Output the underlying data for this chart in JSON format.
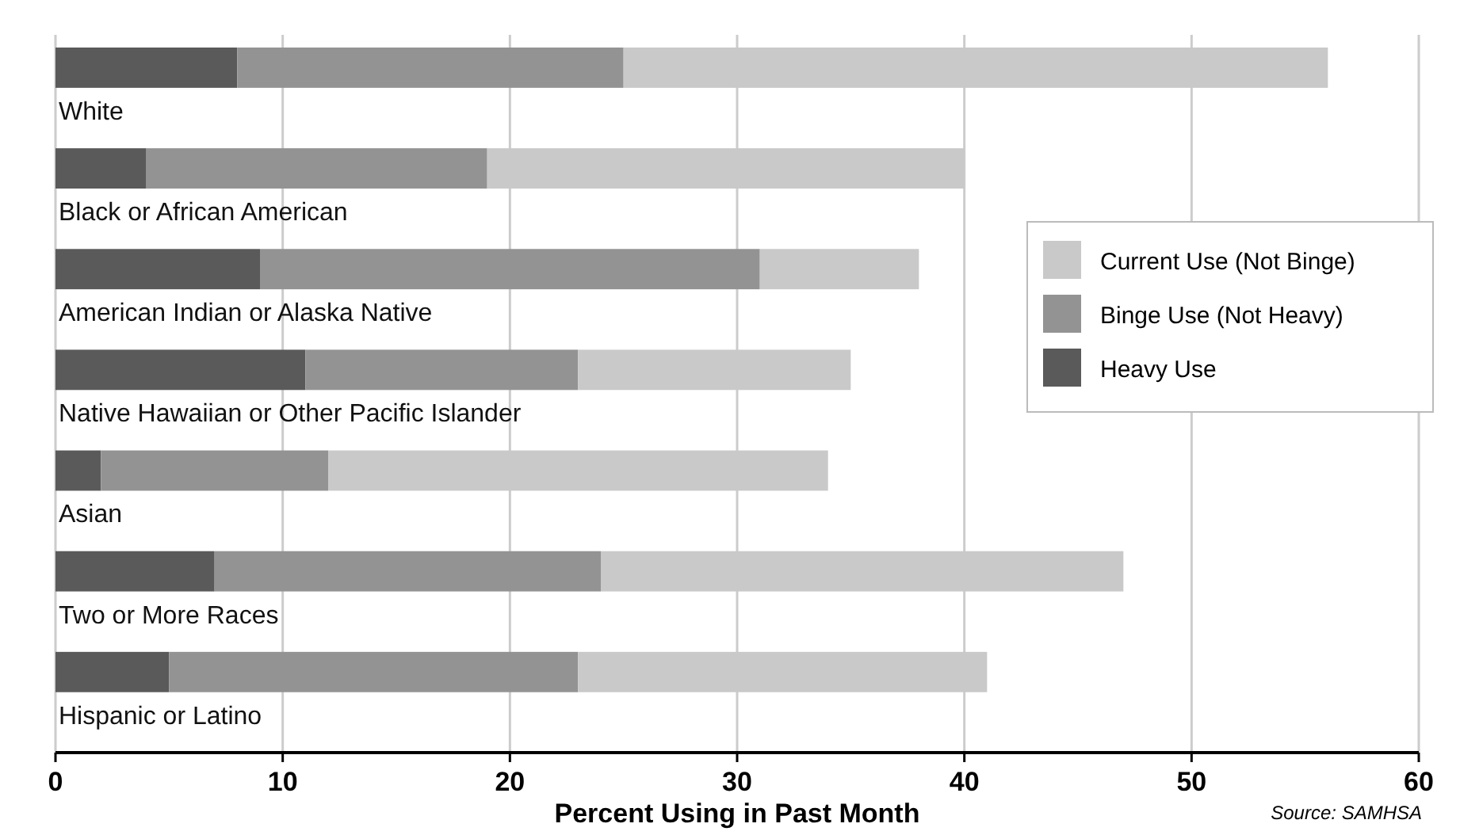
{
  "chart_data": {
    "type": "bar",
    "orientation": "horizontal",
    "stacked": true,
    "xlabel": "Percent Using in Past Month",
    "annotations": [
      "Source: SAMHSA"
    ],
    "categories": [
      "White",
      "Black or African American",
      "American Indian or Alaska Native",
      "Native Hawaiian or Other Pacific Islander",
      "Asian",
      "Two or More Races",
      "Hispanic or Latino"
    ],
    "series": [
      {
        "name": "Heavy Use",
        "color": "#5a5a5a",
        "values": [
          8,
          4,
          9,
          11,
          2,
          7,
          5
        ]
      },
      {
        "name": "Binge Use (Not Heavy)",
        "color": "#939393",
        "values": [
          17,
          15,
          22,
          12,
          10,
          17,
          18
        ]
      },
      {
        "name": "Current Use (Not Binge)",
        "color": "#c9c9c9",
        "values": [
          31,
          21,
          7,
          12,
          22,
          23,
          18
        ]
      }
    ],
    "xlim": [
      0,
      60
    ],
    "xticks": [
      0,
      10,
      20,
      30,
      40,
      50,
      60
    ],
    "grid": "x",
    "legend": "right"
  }
}
